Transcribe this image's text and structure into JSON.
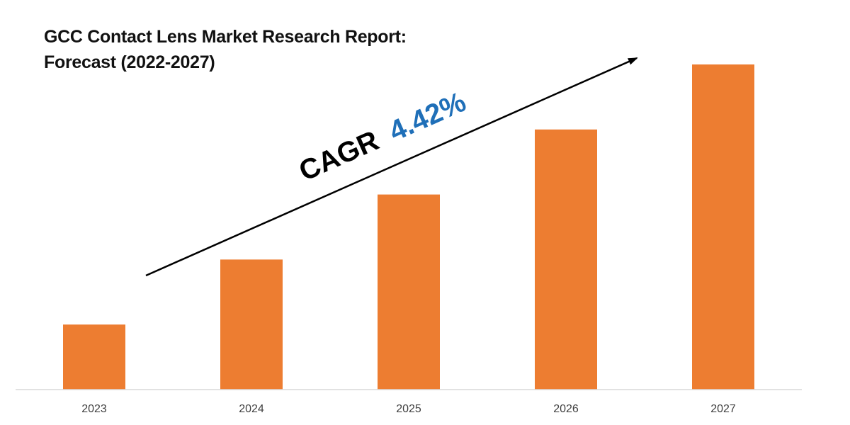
{
  "title_line1": "GCC Contact Lens Market Research Report:",
  "title_line2": "Forecast (2022-2027)",
  "annotation": {
    "prefix": "CAGR",
    "value": "4.42%",
    "prefix_color": "#000000",
    "value_color": "#1f6fb8"
  },
  "colors": {
    "bar": "#ed7d31",
    "axis": "#d9d9d9",
    "arrow": "#000000"
  },
  "chart_data": {
    "type": "bar",
    "title": "GCC Contact Lens Market Research Report: Forecast (2022-2027)",
    "categories": [
      "2023",
      "2024",
      "2025",
      "2026",
      "2027"
    ],
    "values": [
      20,
      40,
      60,
      80,
      100
    ],
    "ylim": [
      0,
      100
    ],
    "xlabel": "",
    "ylabel": "",
    "grid": false,
    "legend": "none",
    "annotation": "CAGR 4.42%"
  }
}
